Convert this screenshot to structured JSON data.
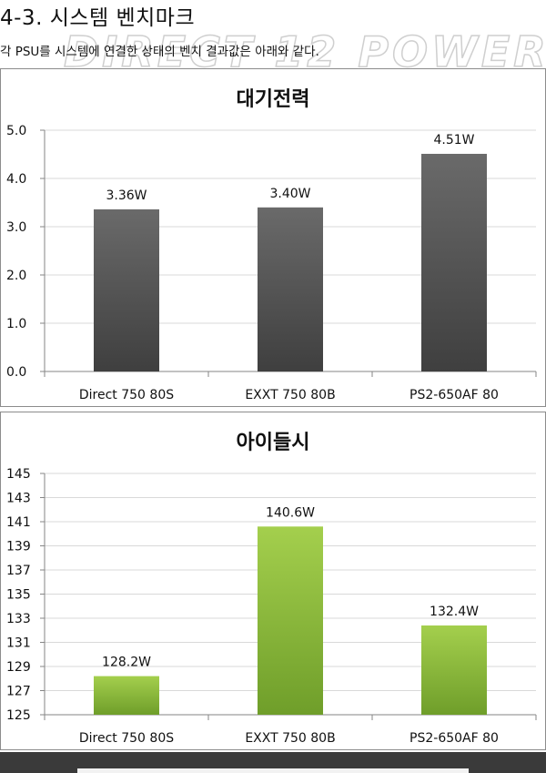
{
  "heading": "4-3. 시스템 벤치마크",
  "intro": "각 PSU를 시스템에 연결한 상태의 벤치 결과값은 아래와 같다.",
  "watermark": "DIRECT 12 POWER",
  "colors": {
    "standby_bar": "#5a5a5a",
    "idle_bar": "#8fbf3a",
    "grid": "#d9d9d9",
    "axis": "#868686"
  },
  "chart_data": [
    {
      "type": "bar",
      "title": "대기전력",
      "categories": [
        "Direct 750 80S",
        "EXXT 750 80B",
        "PS2-650AF 80"
      ],
      "values": [
        3.36,
        3.4,
        4.51
      ],
      "data_labels": [
        "3.36W",
        "3.40W",
        "4.51W"
      ],
      "unit": "W",
      "ylim": [
        0.0,
        5.0
      ],
      "yticks": [
        0.0,
        1.0,
        2.0,
        3.0,
        4.0,
        5.0
      ],
      "ytick_decimals": 1,
      "grid": true,
      "legend": "none"
    },
    {
      "type": "bar",
      "title": "아이들시",
      "categories": [
        "Direct 750 80S",
        "EXXT 750 80B",
        "PS2-650AF 80"
      ],
      "values": [
        128.2,
        140.6,
        132.4
      ],
      "data_labels": [
        "128.2W",
        "140.6W",
        "132.4W"
      ],
      "unit": "W",
      "ylim": [
        125,
        145
      ],
      "yticks": [
        125,
        127,
        129,
        131,
        133,
        135,
        137,
        139,
        141,
        143,
        145
      ],
      "ytick_decimals": 0,
      "grid": true,
      "legend": "none"
    }
  ]
}
